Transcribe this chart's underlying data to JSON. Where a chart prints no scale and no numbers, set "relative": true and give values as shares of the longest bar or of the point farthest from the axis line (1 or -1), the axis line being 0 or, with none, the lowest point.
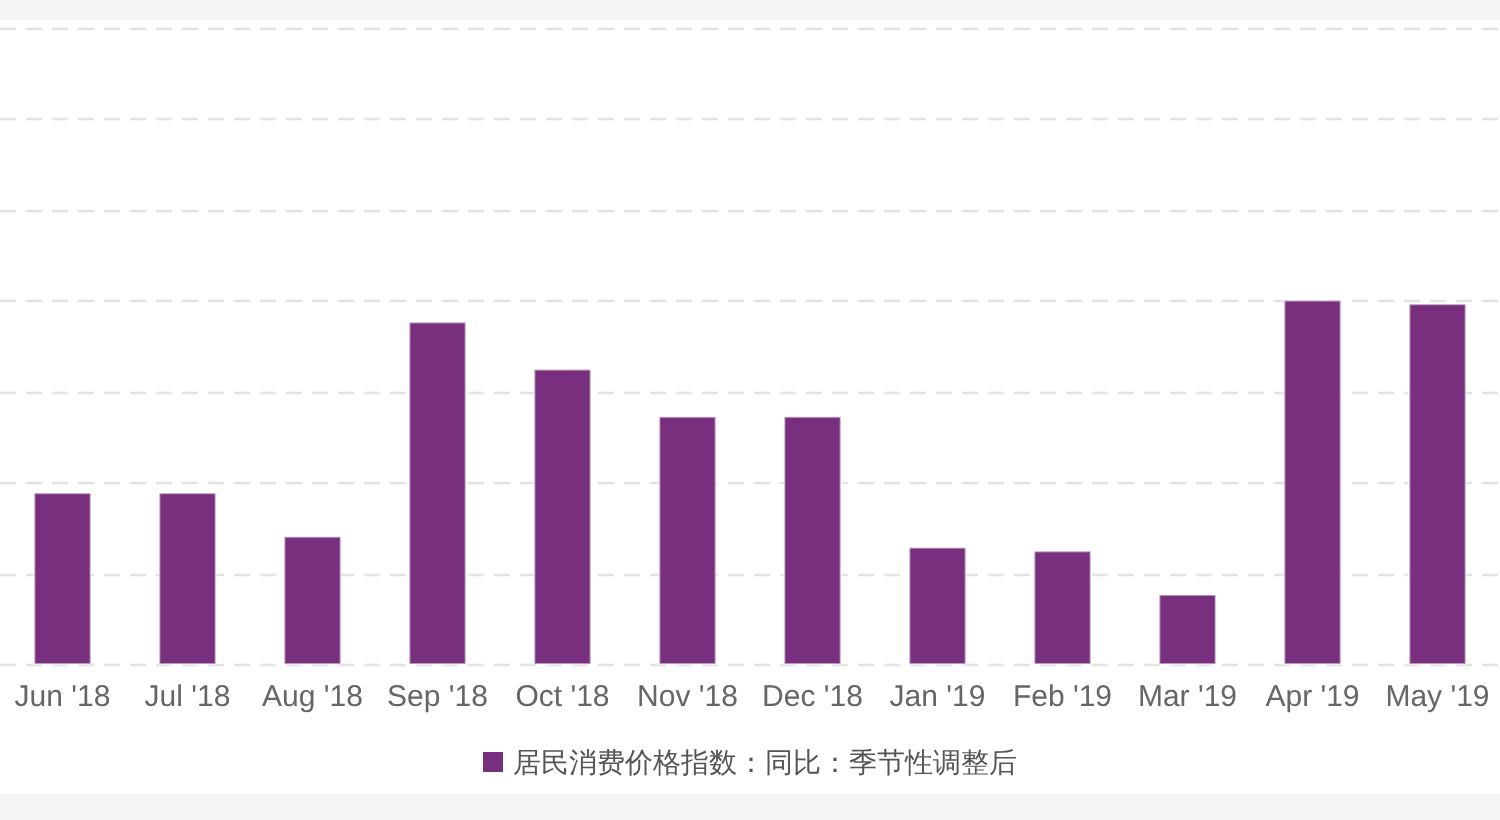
{
  "chart_data": {
    "type": "bar",
    "categories": [
      "Jun '18",
      "Jul '18",
      "Aug '18",
      "Sep '18",
      "Oct '18",
      "Nov '18",
      "Dec '18",
      "Jan '19",
      "Feb '19",
      "Mar '19",
      "Apr '19",
      "May '19"
    ],
    "series": [
      {
        "name": "居民消费价格指数：同比：季节性调整后",
        "color": "#772f7e",
        "values": [
          0.47,
          0.47,
          0.35,
          0.94,
          0.81,
          0.68,
          0.68,
          0.32,
          0.31,
          0.19,
          1,
          0.99
        ]
      }
    ],
    "relative": true,
    "grid": "y",
    "legend": "bottom"
  }
}
